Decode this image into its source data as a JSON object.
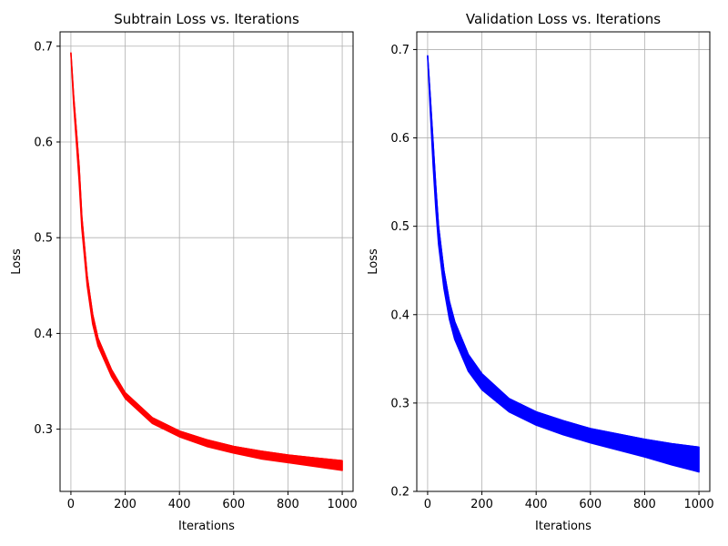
{
  "chart_data": [
    {
      "type": "line",
      "title": "Subtrain Loss vs. Iterations",
      "xlabel": "Iterations",
      "ylabel": "Loss",
      "xlim": [
        -40,
        1040
      ],
      "ylim": [
        0.235,
        0.715
      ],
      "xticks": [
        0,
        200,
        400,
        600,
        800,
        1000
      ],
      "yticks": [
        0.3,
        0.4,
        0.5,
        0.6,
        0.7
      ],
      "grid": true,
      "series": [
        {
          "color": "#ff0000",
          "x": [
            0,
            10,
            20,
            30,
            40,
            60,
            80,
            100,
            150,
            200,
            300,
            400,
            500,
            600,
            700,
            800,
            900,
            1000
          ],
          "y_upper": [
            0.693,
            0.648,
            0.612,
            0.575,
            0.522,
            0.46,
            0.42,
            0.395,
            0.362,
            0.338,
            0.312,
            0.298,
            0.289,
            0.282,
            0.277,
            0.273,
            0.27,
            0.267
          ],
          "y_lower": [
            0.693,
            0.64,
            0.6,
            0.56,
            0.51,
            0.45,
            0.41,
            0.387,
            0.355,
            0.332,
            0.306,
            0.292,
            0.282,
            0.275,
            0.269,
            0.265,
            0.261,
            0.257
          ]
        }
      ]
    },
    {
      "type": "line",
      "title": "Validation Loss vs. Iterations",
      "xlabel": "Iterations",
      "ylabel": "Loss",
      "xlim": [
        -40,
        1040
      ],
      "ylim": [
        0.2,
        0.72
      ],
      "xticks": [
        0,
        200,
        400,
        600,
        800,
        1000
      ],
      "yticks": [
        0.2,
        0.3,
        0.4,
        0.5,
        0.6,
        0.7
      ],
      "grid": true,
      "series": [
        {
          "color": "#0000ff",
          "x": [
            0,
            10,
            20,
            30,
            40,
            60,
            80,
            100,
            150,
            200,
            300,
            400,
            500,
            600,
            700,
            800,
            900,
            1000
          ],
          "y_upper": [
            0.693,
            0.645,
            0.595,
            0.545,
            0.5,
            0.45,
            0.415,
            0.392,
            0.355,
            0.333,
            0.305,
            0.29,
            0.28,
            0.271,
            0.265,
            0.259,
            0.254,
            0.25
          ],
          "y_lower": [
            0.693,
            0.63,
            0.57,
            0.52,
            0.48,
            0.43,
            0.395,
            0.372,
            0.336,
            0.315,
            0.29,
            0.275,
            0.264,
            0.255,
            0.247,
            0.239,
            0.23,
            0.222
          ]
        }
      ]
    }
  ]
}
